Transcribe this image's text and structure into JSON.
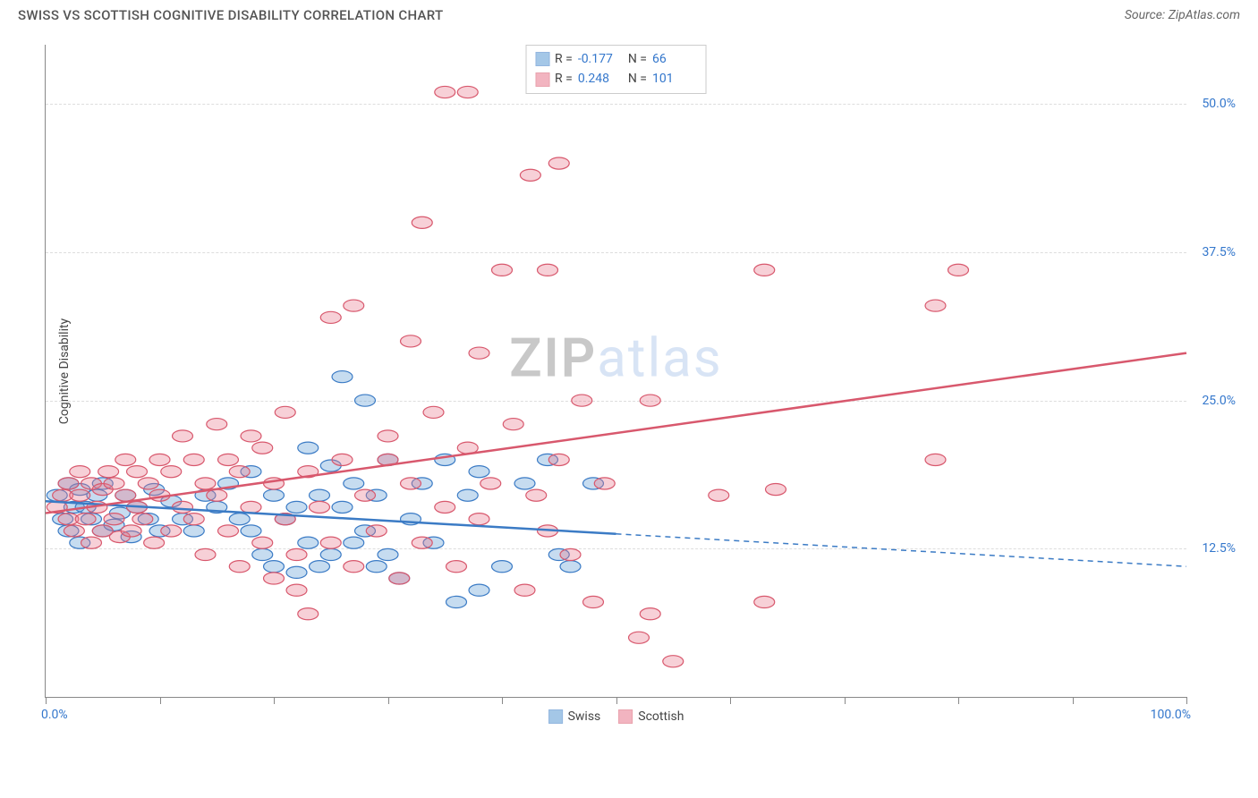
{
  "title": "SWISS VS SCOTTISH COGNITIVE DISABILITY CORRELATION CHART",
  "source": "Source: ZipAtlas.com",
  "y_axis_title": "Cognitive Disability",
  "watermark_a": "ZIP",
  "watermark_b": "atlas",
  "chart": {
    "type": "scatter",
    "xlim": [
      0,
      100
    ],
    "ylim": [
      0,
      55
    ],
    "x_axis_label_left": "0.0%",
    "x_axis_label_right": "100.0%",
    "x_tick_positions": [
      0,
      10,
      20,
      30,
      40,
      50,
      60,
      70,
      80,
      90,
      100
    ],
    "y_gridlines": [
      {
        "value": 12.5,
        "label": "12.5%"
      },
      {
        "value": 25.0,
        "label": "25.0%"
      },
      {
        "value": 37.5,
        "label": "37.5%"
      },
      {
        "value": 50.0,
        "label": "50.0%"
      }
    ],
    "background_color": "#ffffff",
    "grid_color": "#dddddd",
    "axis_color": "#888888",
    "tick_label_color": "#3477cc",
    "marker_radius": 9,
    "marker_fill_opacity": 0.35,
    "marker_stroke_width": 1.2,
    "series": [
      {
        "id": "swiss",
        "label": "Swiss",
        "R": "-0.177",
        "N": "66",
        "color": "#5b9bd5",
        "stroke": "#3b7bc5",
        "trend": {
          "y_at_x0": 16.5,
          "y_at_x100": 11.0,
          "solid_until_x": 50
        },
        "points": [
          [
            1,
            17
          ],
          [
            1.5,
            15
          ],
          [
            2,
            18
          ],
          [
            2,
            14
          ],
          [
            2.5,
            16
          ],
          [
            3,
            17.5
          ],
          [
            3,
            13
          ],
          [
            3.5,
            16
          ],
          [
            4,
            15
          ],
          [
            4.5,
            17
          ],
          [
            5,
            14
          ],
          [
            5,
            18
          ],
          [
            6,
            14.5
          ],
          [
            6.5,
            15.5
          ],
          [
            7,
            17
          ],
          [
            7.5,
            13.5
          ],
          [
            8,
            16
          ],
          [
            9,
            15
          ],
          [
            9.5,
            17.5
          ],
          [
            10,
            14
          ],
          [
            11,
            16.5
          ],
          [
            12,
            15
          ],
          [
            13,
            14
          ],
          [
            14,
            17
          ],
          [
            15,
            16
          ],
          [
            16,
            18
          ],
          [
            17,
            15
          ],
          [
            18,
            14
          ],
          [
            18,
            19
          ],
          [
            19,
            12
          ],
          [
            20,
            17
          ],
          [
            20,
            11
          ],
          [
            21,
            15
          ],
          [
            22,
            10.5
          ],
          [
            22,
            16
          ],
          [
            23,
            13
          ],
          [
            23,
            21
          ],
          [
            24,
            11
          ],
          [
            24,
            17
          ],
          [
            25,
            12
          ],
          [
            25,
            19.5
          ],
          [
            26,
            16
          ],
          [
            26,
            27
          ],
          [
            27,
            13
          ],
          [
            27,
            18
          ],
          [
            28,
            25
          ],
          [
            28,
            14
          ],
          [
            29,
            11
          ],
          [
            29,
            17
          ],
          [
            30,
            20
          ],
          [
            30,
            12
          ],
          [
            31,
            10
          ],
          [
            32,
            15
          ],
          [
            33,
            18
          ],
          [
            34,
            13
          ],
          [
            35,
            20
          ],
          [
            36,
            8
          ],
          [
            37,
            17
          ],
          [
            38,
            19
          ],
          [
            38,
            9
          ],
          [
            40,
            11
          ],
          [
            42,
            18
          ],
          [
            44,
            20
          ],
          [
            45,
            12
          ],
          [
            46,
            11
          ],
          [
            48,
            18
          ]
        ]
      },
      {
        "id": "scottish",
        "label": "Scottish",
        "R": "0.248",
        "N": "101",
        "color": "#e8788d",
        "stroke": "#d8586d",
        "trend": {
          "y_at_x0": 15.5,
          "y_at_x100": 29.0,
          "solid_until_x": 100
        },
        "points": [
          [
            1,
            16
          ],
          [
            1.5,
            17
          ],
          [
            2,
            15
          ],
          [
            2,
            18
          ],
          [
            2.5,
            14
          ],
          [
            3,
            17
          ],
          [
            3,
            19
          ],
          [
            3.5,
            15
          ],
          [
            4,
            18
          ],
          [
            4,
            13
          ],
          [
            4.5,
            16
          ],
          [
            5,
            17.5
          ],
          [
            5,
            14
          ],
          [
            5.5,
            19
          ],
          [
            6,
            15
          ],
          [
            6,
            18
          ],
          [
            6.5,
            13.5
          ],
          [
            7,
            17
          ],
          [
            7,
            20
          ],
          [
            7.5,
            14
          ],
          [
            8,
            16
          ],
          [
            8,
            19
          ],
          [
            8.5,
            15
          ],
          [
            9,
            18
          ],
          [
            9.5,
            13
          ],
          [
            10,
            17
          ],
          [
            10,
            20
          ],
          [
            11,
            14
          ],
          [
            11,
            19
          ],
          [
            12,
            16
          ],
          [
            12,
            22
          ],
          [
            13,
            15
          ],
          [
            13,
            20
          ],
          [
            14,
            12
          ],
          [
            14,
            18
          ],
          [
            15,
            17
          ],
          [
            15,
            23
          ],
          [
            16,
            14
          ],
          [
            16,
            20
          ],
          [
            17,
            11
          ],
          [
            17,
            19
          ],
          [
            18,
            16
          ],
          [
            18,
            22
          ],
          [
            19,
            13
          ],
          [
            19,
            21
          ],
          [
            20,
            10
          ],
          [
            20,
            18
          ],
          [
            21,
            15
          ],
          [
            21,
            24
          ],
          [
            22,
            12
          ],
          [
            22,
            9
          ],
          [
            23,
            19
          ],
          [
            23,
            7
          ],
          [
            24,
            16
          ],
          [
            25,
            13
          ],
          [
            25,
            32
          ],
          [
            26,
            20
          ],
          [
            27,
            11
          ],
          [
            27,
            33
          ],
          [
            28,
            17
          ],
          [
            29,
            14
          ],
          [
            30,
            22
          ],
          [
            30,
            20
          ],
          [
            31,
            10
          ],
          [
            32,
            18
          ],
          [
            32,
            30
          ],
          [
            33,
            13
          ],
          [
            33,
            40
          ],
          [
            34,
            24
          ],
          [
            35,
            51
          ],
          [
            35,
            16
          ],
          [
            36,
            11
          ],
          [
            37,
            21
          ],
          [
            37,
            51
          ],
          [
            38,
            15
          ],
          [
            38,
            29
          ],
          [
            39,
            18
          ],
          [
            40,
            36
          ],
          [
            41,
            23
          ],
          [
            42,
            9
          ],
          [
            42.5,
            44
          ],
          [
            43,
            17
          ],
          [
            44,
            14
          ],
          [
            44,
            36
          ],
          [
            45,
            20
          ],
          [
            45,
            45
          ],
          [
            46,
            12
          ],
          [
            47,
            25
          ],
          [
            48,
            8
          ],
          [
            49,
            18
          ],
          [
            52,
            5
          ],
          [
            53,
            7
          ],
          [
            53,
            25
          ],
          [
            55,
            3
          ],
          [
            59,
            17
          ],
          [
            63,
            36
          ],
          [
            63,
            8
          ],
          [
            64,
            17.5
          ],
          [
            78,
            33
          ],
          [
            78,
            20
          ],
          [
            80,
            36
          ]
        ]
      }
    ]
  },
  "legend": {
    "swiss": "Swiss",
    "scottish": "Scottish"
  }
}
